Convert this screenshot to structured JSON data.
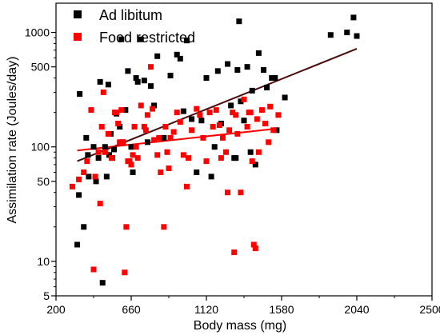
{
  "chart_data": {
    "type": "scatter",
    "title": "",
    "xlabel": "Body mass (mg)",
    "ylabel": "Assimilation rate (Joules/day)",
    "xlim": [
      200,
      2500
    ],
    "ylim": [
      5,
      1800
    ],
    "y_scale": "log",
    "grid": false,
    "legend_position": "top-left",
    "x_ticks": [
      200,
      660,
      1120,
      1580,
      2040,
      2500
    ],
    "y_ticks": [
      5,
      10,
      50,
      100,
      500,
      1000
    ],
    "series": [
      {
        "name": "Ad libitum",
        "color": "#000000",
        "marker": "square",
        "points": [
          [
            330,
            14
          ],
          [
            340,
            38
          ],
          [
            345,
            290
          ],
          [
            370,
            20
          ],
          [
            385,
            120
          ],
          [
            395,
            85
          ],
          [
            400,
            55
          ],
          [
            430,
            100
          ],
          [
            445,
            50
          ],
          [
            460,
            80
          ],
          [
            470,
            370
          ],
          [
            485,
            6.5
          ],
          [
            500,
            100
          ],
          [
            510,
            55
          ],
          [
            520,
            350
          ],
          [
            525,
            85
          ],
          [
            535,
            130
          ],
          [
            545,
            80
          ],
          [
            555,
            95
          ],
          [
            570,
            195
          ],
          [
            590,
            150
          ],
          [
            600,
            870
          ],
          [
            610,
            110
          ],
          [
            625,
            210
          ],
          [
            640,
            460
          ],
          [
            660,
            100
          ],
          [
            670,
            60
          ],
          [
            690,
            400
          ],
          [
            700,
            370
          ],
          [
            720,
            870
          ],
          [
            740,
            380
          ],
          [
            760,
            110
          ],
          [
            780,
            340
          ],
          [
            800,
            230
          ],
          [
            820,
            620
          ],
          [
            860,
            120
          ],
          [
            900,
            420
          ],
          [
            940,
            640
          ],
          [
            960,
            590
          ],
          [
            980,
            205
          ],
          [
            1000,
            850
          ],
          [
            1030,
            175
          ],
          [
            1060,
            60
          ],
          [
            1090,
            170
          ],
          [
            1120,
            400
          ],
          [
            1150,
            55
          ],
          [
            1170,
            100
          ],
          [
            1190,
            460
          ],
          [
            1210,
            160
          ],
          [
            1250,
            530
          ],
          [
            1270,
            230
          ],
          [
            1290,
            80
          ],
          [
            1300,
            80
          ],
          [
            1310,
            470
          ],
          [
            1320,
            1250
          ],
          [
            1330,
            250
          ],
          [
            1350,
            170
          ],
          [
            1370,
            500
          ],
          [
            1390,
            90
          ],
          [
            1400,
            310
          ],
          [
            1420,
            70
          ],
          [
            1440,
            660
          ],
          [
            1470,
            470
          ],
          [
            1490,
            330
          ],
          [
            1520,
            400
          ],
          [
            1540,
            400
          ],
          [
            1550,
            140
          ],
          [
            1600,
            270
          ],
          [
            1880,
            950
          ],
          [
            1980,
            1000
          ],
          [
            2020,
            1350
          ],
          [
            2040,
            930
          ]
        ]
      },
      {
        "name": "Food restricted",
        "color": "#ff0000",
        "marker": "square",
        "points": [
          [
            300,
            45
          ],
          [
            340,
            52
          ],
          [
            370,
            60
          ],
          [
            390,
            75
          ],
          [
            415,
            210
          ],
          [
            430,
            8.5
          ],
          [
            440,
            55
          ],
          [
            460,
            90
          ],
          [
            470,
            32
          ],
          [
            480,
            150
          ],
          [
            490,
            300
          ],
          [
            500,
            90
          ],
          [
            520,
            130
          ],
          [
            540,
            80
          ],
          [
            560,
            200
          ],
          [
            570,
            200
          ],
          [
            580,
            160
          ],
          [
            590,
            110
          ],
          [
            600,
            210
          ],
          [
            610,
            110
          ],
          [
            620,
            8
          ],
          [
            630,
            20
          ],
          [
            640,
            75
          ],
          [
            650,
            75
          ],
          [
            660,
            70
          ],
          [
            670,
            85
          ],
          [
            680,
            150
          ],
          [
            690,
            100
          ],
          [
            700,
            80
          ],
          [
            720,
            230
          ],
          [
            740,
            150
          ],
          [
            750,
            140
          ],
          [
            760,
            190
          ],
          [
            780,
            500
          ],
          [
            790,
            215
          ],
          [
            800,
            115
          ],
          [
            820,
            85
          ],
          [
            830,
            120
          ],
          [
            840,
            60
          ],
          [
            860,
            20
          ],
          [
            870,
            150
          ],
          [
            880,
            90
          ],
          [
            890,
            65
          ],
          [
            900,
            120
          ],
          [
            920,
            135
          ],
          [
            940,
            200
          ],
          [
            960,
            165
          ],
          [
            980,
            85
          ],
          [
            1000,
            45
          ],
          [
            1010,
            80
          ],
          [
            1030,
            140
          ],
          [
            1060,
            215
          ],
          [
            1080,
            190
          ],
          [
            1100,
            120
          ],
          [
            1120,
            75
          ],
          [
            1140,
            200
          ],
          [
            1160,
            150
          ],
          [
            1180,
            210
          ],
          [
            1200,
            155
          ],
          [
            1210,
            80
          ],
          [
            1220,
            120
          ],
          [
            1240,
            90
          ],
          [
            1250,
            40
          ],
          [
            1260,
            140
          ],
          [
            1280,
            200
          ],
          [
            1290,
            12
          ],
          [
            1300,
            190
          ],
          [
            1310,
            130
          ],
          [
            1330,
            40
          ],
          [
            1350,
            260
          ],
          [
            1370,
            150
          ],
          [
            1380,
            200
          ],
          [
            1390,
            200
          ],
          [
            1400,
            75
          ],
          [
            1410,
            14
          ],
          [
            1420,
            13
          ],
          [
            1430,
            175
          ],
          [
            1440,
            90
          ],
          [
            1460,
            210
          ],
          [
            1480,
            160
          ],
          [
            1500,
            110
          ],
          [
            1510,
            225
          ],
          [
            1530,
            140
          ],
          [
            1560,
            190
          ]
        ]
      }
    ],
    "trend_lines": [
      {
        "series": "Ad libitum",
        "color": "#4a0c0c",
        "from": [
          330,
          75
        ],
        "to": [
          2040,
          720
        ]
      },
      {
        "series": "Food restricted",
        "color": "#ff0000",
        "from": [
          330,
          93
        ],
        "to": [
          1560,
          145
        ]
      }
    ]
  }
}
